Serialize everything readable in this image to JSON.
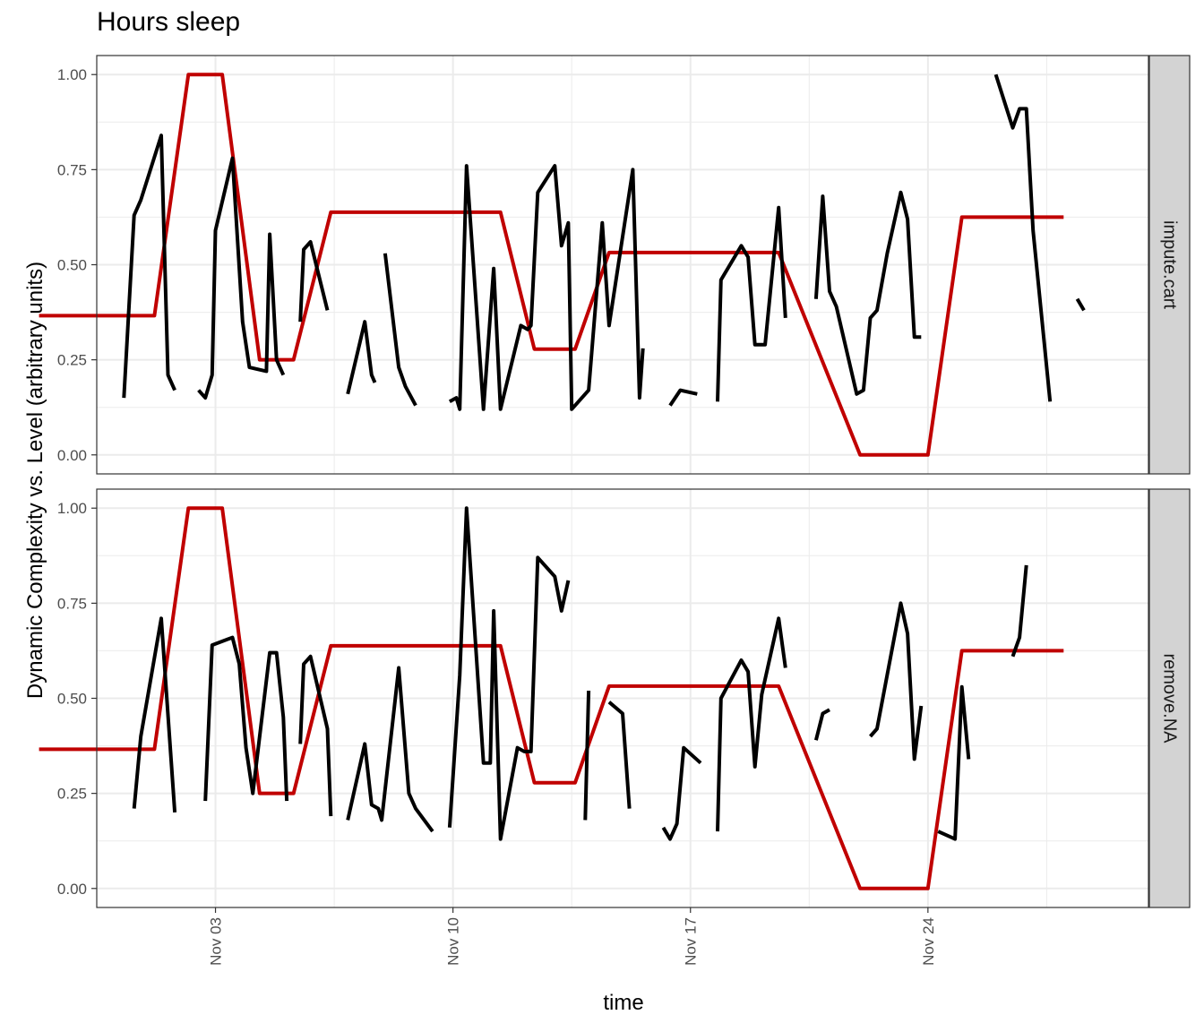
{
  "chart_data": {
    "type": "line",
    "title": "Hours sleep",
    "xlabel": "time",
    "ylabel": "Dynamic Complexity vs. Level (arbitrary units)",
    "x_ticks": [
      "Nov 03",
      "Nov 10",
      "Nov 17",
      "Nov 24"
    ],
    "x_tick_days": [
      3,
      10,
      17,
      24
    ],
    "x_range_days": [
      -0.5,
      30.5
    ],
    "ylim": [
      -0.05,
      1.05
    ],
    "y_ticks": [
      0,
      0.25,
      0.5,
      0.75,
      1
    ],
    "y_tick_labels": [
      "0.00",
      "0.25",
      "0.50",
      "0.75",
      "1.00"
    ],
    "grid": true,
    "colors": {
      "level": "#c00000",
      "complexity": "#000000",
      "strip_bg": "#d3d3d3",
      "grid": "#ebebeb"
    },
    "panels": [
      {
        "strip": "impute.cart",
        "series": [
          {
            "color": "#c00000",
            "points": [
              [
                -2.2,
                0.366
              ],
              [
                1.2,
                0.366
              ],
              [
                2.2,
                1.0
              ],
              [
                3.2,
                1.0
              ],
              [
                4.3,
                0.25
              ],
              [
                5.3,
                0.25
              ],
              [
                6.4,
                0.638
              ],
              [
                11.4,
                0.638
              ],
              [
                12.4,
                0.278
              ],
              [
                13.6,
                0.278
              ],
              [
                14.6,
                0.532
              ],
              [
                19.6,
                0.532
              ],
              [
                22.0,
                0.0
              ],
              [
                24.0,
                0.0
              ],
              [
                25.0,
                0.625
              ],
              [
                28.0,
                0.625
              ]
            ]
          },
          {
            "color": "#000000",
            "segments": [
              [
                [
                  0.3,
                  0.15
                ],
                [
                  0.6,
                  0.63
                ],
                [
                  0.8,
                  0.67
                ],
                [
                  1.4,
                  0.84
                ],
                [
                  1.6,
                  0.21
                ],
                [
                  1.8,
                  0.17
                ]
              ],
              [
                [
                  2.5,
                  0.17
                ],
                [
                  2.7,
                  0.15
                ],
                [
                  2.9,
                  0.21
                ],
                [
                  3.0,
                  0.59
                ],
                [
                  3.5,
                  0.78
                ],
                [
                  3.8,
                  0.35
                ],
                [
                  4.0,
                  0.23
                ],
                [
                  4.5,
                  0.22
                ],
                [
                  4.6,
                  0.58
                ],
                [
                  4.8,
                  0.25
                ],
                [
                  5.0,
                  0.21
                ]
              ],
              [
                [
                  5.5,
                  0.35
                ],
                [
                  5.6,
                  0.54
                ],
                [
                  5.8,
                  0.56
                ],
                [
                  6.3,
                  0.38
                ]
              ],
              [
                [
                  6.9,
                  0.16
                ],
                [
                  7.4,
                  0.35
                ],
                [
                  7.6,
                  0.21
                ],
                [
                  7.7,
                  0.19
                ]
              ],
              [
                [
                  8.0,
                  0.53
                ],
                [
                  8.4,
                  0.23
                ],
                [
                  8.6,
                  0.18
                ],
                [
                  8.9,
                  0.13
                ]
              ],
              [
                [
                  9.9,
                  0.14
                ],
                [
                  10.1,
                  0.15
                ],
                [
                  10.2,
                  0.12
                ],
                [
                  10.4,
                  0.76
                ],
                [
                  10.9,
                  0.12
                ],
                [
                  11.2,
                  0.49
                ],
                [
                  11.4,
                  0.12
                ],
                [
                  12.0,
                  0.34
                ],
                [
                  12.2,
                  0.33
                ],
                [
                  12.3,
                  0.34
                ],
                [
                  12.5,
                  0.69
                ],
                [
                  13.0,
                  0.76
                ],
                [
                  13.2,
                  0.55
                ],
                [
                  13.4,
                  0.61
                ],
                [
                  13.5,
                  0.12
                ],
                [
                  14.0,
                  0.17
                ],
                [
                  14.4,
                  0.61
                ],
                [
                  14.6,
                  0.34
                ],
                [
                  15.3,
                  0.75
                ],
                [
                  15.5,
                  0.15
                ],
                [
                  15.6,
                  0.28
                ]
              ],
              [
                [
                  16.4,
                  0.13
                ],
                [
                  16.7,
                  0.17
                ],
                [
                  17.2,
                  0.16
                ]
              ],
              [
                [
                  17.8,
                  0.14
                ],
                [
                  17.9,
                  0.46
                ],
                [
                  18.5,
                  0.55
                ],
                [
                  18.7,
                  0.52
                ],
                [
                  18.9,
                  0.29
                ],
                [
                  19.2,
                  0.29
                ],
                [
                  19.6,
                  0.65
                ],
                [
                  19.8,
                  0.36
                ]
              ],
              [
                [
                  20.7,
                  0.41
                ],
                [
                  20.9,
                  0.68
                ],
                [
                  21.1,
                  0.43
                ],
                [
                  21.3,
                  0.39
                ],
                [
                  21.9,
                  0.16
                ],
                [
                  22.1,
                  0.17
                ],
                [
                  22.3,
                  0.36
                ],
                [
                  22.5,
                  0.38
                ],
                [
                  22.8,
                  0.53
                ],
                [
                  23.2,
                  0.69
                ],
                [
                  23.4,
                  0.62
                ],
                [
                  23.6,
                  0.31
                ],
                [
                  23.8,
                  0.31
                ]
              ],
              [
                [
                  26.0,
                  1.0
                ],
                [
                  26.5,
                  0.86
                ],
                [
                  26.7,
                  0.91
                ],
                [
                  26.9,
                  0.91
                ],
                [
                  27.1,
                  0.59
                ],
                [
                  27.6,
                  0.14
                ]
              ],
              [
                [
                  28.4,
                  0.41
                ],
                [
                  28.6,
                  0.38
                ]
              ]
            ]
          }
        ]
      },
      {
        "strip": "remove.NA",
        "series": [
          {
            "color": "#c00000",
            "points": [
              [
                -2.2,
                0.366
              ],
              [
                1.2,
                0.366
              ],
              [
                2.2,
                1.0
              ],
              [
                3.2,
                1.0
              ],
              [
                4.3,
                0.25
              ],
              [
                5.3,
                0.25
              ],
              [
                6.4,
                0.638
              ],
              [
                11.4,
                0.638
              ],
              [
                12.4,
                0.278
              ],
              [
                13.6,
                0.278
              ],
              [
                14.6,
                0.532
              ],
              [
                19.6,
                0.532
              ],
              [
                22.0,
                0.0
              ],
              [
                24.0,
                0.0
              ],
              [
                25.0,
                0.625
              ],
              [
                28.0,
                0.625
              ]
            ]
          },
          {
            "color": "#000000",
            "segments": [
              [
                [
                  0.6,
                  0.21
                ],
                [
                  0.8,
                  0.4
                ],
                [
                  1.4,
                  0.71
                ],
                [
                  1.8,
                  0.2
                ]
              ],
              [
                [
                  2.7,
                  0.23
                ],
                [
                  2.9,
                  0.64
                ],
                [
                  3.5,
                  0.66
                ],
                [
                  3.7,
                  0.59
                ],
                [
                  3.9,
                  0.37
                ],
                [
                  4.1,
                  0.25
                ],
                [
                  4.6,
                  0.62
                ],
                [
                  4.8,
                  0.62
                ],
                [
                  5.0,
                  0.45
                ],
                [
                  5.1,
                  0.23
                ]
              ],
              [
                [
                  5.5,
                  0.38
                ],
                [
                  5.6,
                  0.59
                ],
                [
                  5.8,
                  0.61
                ],
                [
                  6.3,
                  0.42
                ],
                [
                  6.4,
                  0.19
                ]
              ],
              [
                [
                  6.9,
                  0.18
                ],
                [
                  7.4,
                  0.38
                ],
                [
                  7.6,
                  0.22
                ],
                [
                  7.8,
                  0.21
                ],
                [
                  7.9,
                  0.18
                ],
                [
                  8.4,
                  0.58
                ],
                [
                  8.7,
                  0.25
                ],
                [
                  8.9,
                  0.21
                ],
                [
                  9.4,
                  0.15
                ]
              ],
              [
                [
                  9.9,
                  0.16
                ],
                [
                  10.2,
                  0.56
                ],
                [
                  10.4,
                  1.0
                ],
                [
                  10.9,
                  0.33
                ],
                [
                  11.1,
                  0.33
                ],
                [
                  11.2,
                  0.73
                ],
                [
                  11.4,
                  0.13
                ],
                [
                  11.9,
                  0.37
                ],
                [
                  12.1,
                  0.36
                ],
                [
                  12.3,
                  0.36
                ],
                [
                  12.5,
                  0.87
                ],
                [
                  13.0,
                  0.82
                ],
                [
                  13.2,
                  0.73
                ],
                [
                  13.4,
                  0.81
                ]
              ],
              [
                [
                  13.9,
                  0.18
                ],
                [
                  14.0,
                  0.52
                ]
              ],
              [
                [
                  14.6,
                  0.49
                ],
                [
                  15.0,
                  0.46
                ],
                [
                  15.2,
                  0.21
                ]
              ],
              [
                [
                  16.2,
                  0.16
                ],
                [
                  16.4,
                  0.13
                ],
                [
                  16.6,
                  0.17
                ],
                [
                  16.8,
                  0.37
                ],
                [
                  17.3,
                  0.33
                ]
              ],
              [
                [
                  17.8,
                  0.15
                ],
                [
                  17.9,
                  0.5
                ],
                [
                  18.5,
                  0.6
                ],
                [
                  18.7,
                  0.57
                ],
                [
                  18.9,
                  0.32
                ],
                [
                  19.1,
                  0.51
                ],
                [
                  19.6,
                  0.71
                ],
                [
                  19.8,
                  0.58
                ]
              ],
              [
                [
                  20.7,
                  0.39
                ],
                [
                  20.9,
                  0.46
                ],
                [
                  21.1,
                  0.47
                ]
              ],
              [
                [
                  22.3,
                  0.4
                ],
                [
                  22.5,
                  0.42
                ],
                [
                  23.2,
                  0.75
                ],
                [
                  23.4,
                  0.67
                ],
                [
                  23.6,
                  0.34
                ],
                [
                  23.8,
                  0.48
                ]
              ],
              [
                [
                  24.3,
                  0.15
                ],
                [
                  24.8,
                  0.13
                ],
                [
                  25.0,
                  0.53
                ],
                [
                  25.2,
                  0.34
                ]
              ],
              [
                [
                  26.5,
                  0.61
                ],
                [
                  26.7,
                  0.66
                ],
                [
                  26.9,
                  0.85
                ]
              ]
            ]
          }
        ]
      }
    ]
  }
}
